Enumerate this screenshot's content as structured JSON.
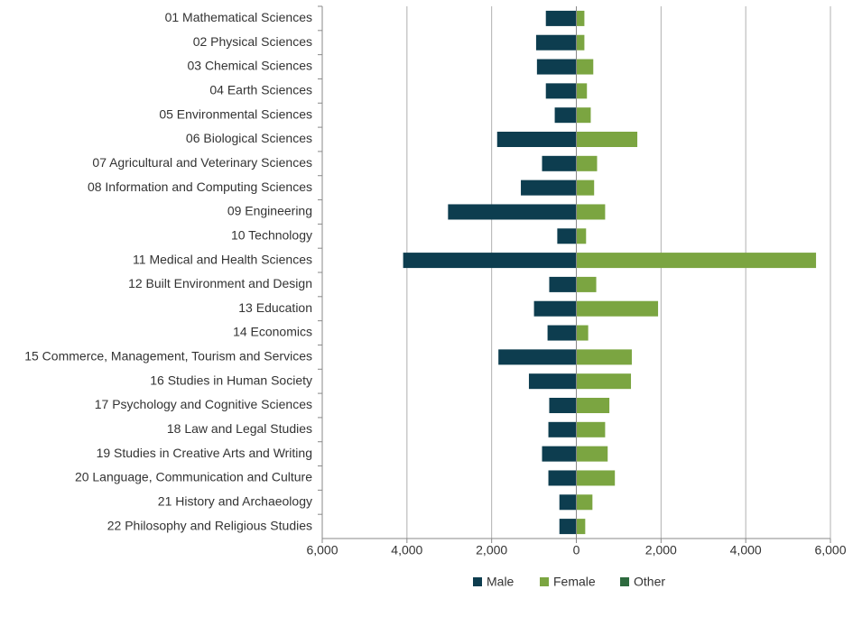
{
  "chart_data": {
    "type": "bar",
    "orientation": "horizontal",
    "stacked": false,
    "categories": [
      "01 Mathematical Sciences",
      "02 Physical Sciences",
      "03 Chemical Sciences",
      "04 Earth Sciences",
      "05 Environmental Sciences",
      "06 Biological Sciences",
      "07 Agricultural and Veterinary Sciences",
      "08 Information and Computing Sciences",
      "09 Engineering",
      "10 Technology",
      "11 Medical and Health Sciences",
      "12 Built Environment and Design",
      "13 Education",
      "14 Economics",
      "15 Commerce, Management, Tourism and Services",
      "16 Studies in Human Society",
      "17 Psychology and Cognitive Sciences",
      "18 Law and Legal Studies",
      "19 Studies in Creative Arts and Writing",
      "20 Language, Communication and Culture",
      "21 History and Archaeology",
      "22 Philosophy and Religious Studies"
    ],
    "series": [
      {
        "name": "Male",
        "color": "#0d3d4f",
        "values": [
          -720,
          -950,
          -930,
          -720,
          -510,
          -1870,
          -810,
          -1310,
          -3030,
          -450,
          -4090,
          -640,
          -1000,
          -680,
          -1840,
          -1120,
          -640,
          -660,
          -810,
          -660,
          -400,
          -400
        ]
      },
      {
        "name": "Female",
        "color": "#7ba541",
        "values": [
          190,
          190,
          400,
          250,
          340,
          1440,
          490,
          420,
          680,
          230,
          5660,
          470,
          1930,
          280,
          1310,
          1290,
          780,
          680,
          740,
          910,
          380,
          210
        ]
      },
      {
        "name": "Other",
        "color": "#2d6a3e",
        "values": [
          0,
          0,
          0,
          0,
          0,
          0,
          0,
          0,
          0,
          0,
          0,
          0,
          0,
          0,
          0,
          0,
          0,
          0,
          0,
          0,
          0,
          0
        ]
      }
    ],
    "xlim": [
      -6000,
      6000
    ],
    "xticks": [
      {
        "value": -6000,
        "label": "6,000"
      },
      {
        "value": -4000,
        "label": "4,000"
      },
      {
        "value": -2000,
        "label": "2,000"
      },
      0,
      {
        "value": 2000,
        "label": "2,000"
      },
      {
        "value": 4000,
        "label": "4,000"
      },
      {
        "value": 6000,
        "label": "6,000"
      }
    ],
    "grid": true,
    "legend": "bottom"
  }
}
